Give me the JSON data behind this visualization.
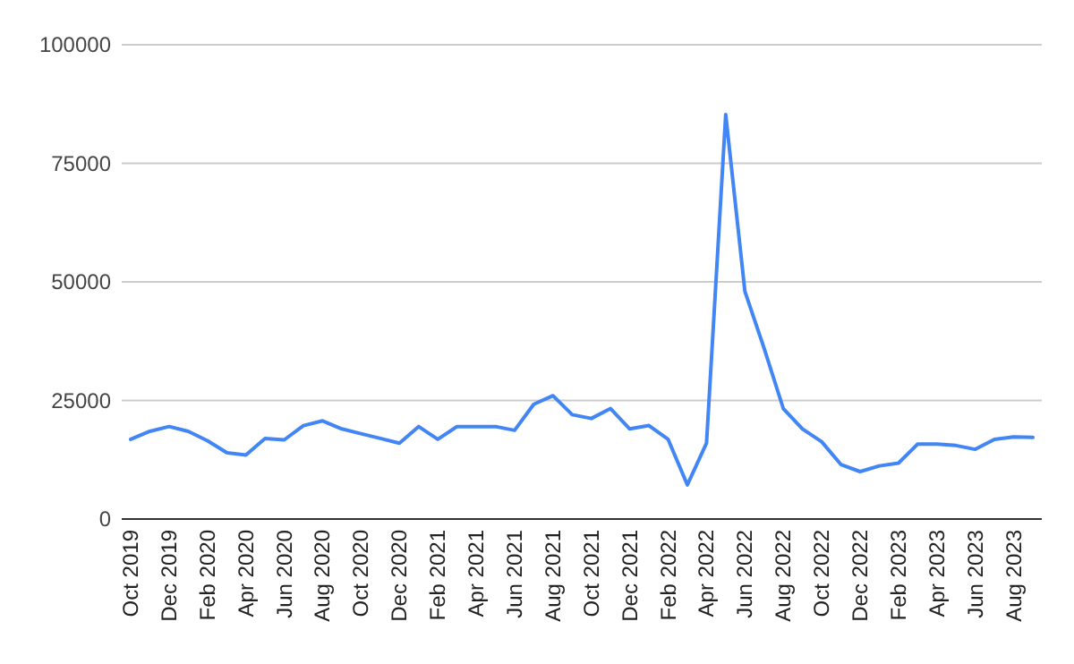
{
  "chart_data": {
    "type": "line",
    "categories": [
      "Oct 2019",
      null,
      "Dec 2019",
      null,
      "Feb 2020",
      null,
      "Apr 2020",
      null,
      "Jun 2020",
      null,
      "Aug 2020",
      null,
      "Oct 2020",
      null,
      "Dec 2020",
      null,
      "Feb 2021",
      null,
      "Apr 2021",
      null,
      "Jun 2021",
      null,
      "Aug 2021",
      null,
      "Oct 2021",
      null,
      "Dec 2021",
      null,
      "Feb 2022",
      null,
      "Apr 2022",
      null,
      "Jun 2022",
      null,
      "Aug 2022",
      null,
      "Oct 2022",
      null,
      "Dec 2022",
      null,
      "Feb 2023",
      null,
      "Apr 2023",
      null,
      "Jun 2023",
      null,
      "Aug 2023",
      null
    ],
    "series": [
      {
        "color": "#4285f4",
        "values": [
          16800,
          18500,
          19500,
          18500,
          16500,
          14000,
          13500,
          17000,
          16700,
          19700,
          20700,
          19000,
          18000,
          17000,
          16000,
          19500,
          16800,
          19500,
          19500,
          19500,
          18700,
          24200,
          26000,
          22000,
          21200,
          23300,
          19000,
          19700,
          16800,
          7200,
          16000,
          85300,
          48000,
          36000,
          23300,
          19000,
          16300,
          11500,
          10000,
          11200,
          11800,
          15800,
          15800,
          15500,
          14700,
          16800,
          17300,
          17200
        ]
      }
    ],
    "ylim": [
      0,
      100000
    ],
    "yticks": [
      0,
      25000,
      50000,
      75000,
      100000
    ],
    "grid": "y",
    "marker": "none",
    "line_style": "solid"
  }
}
